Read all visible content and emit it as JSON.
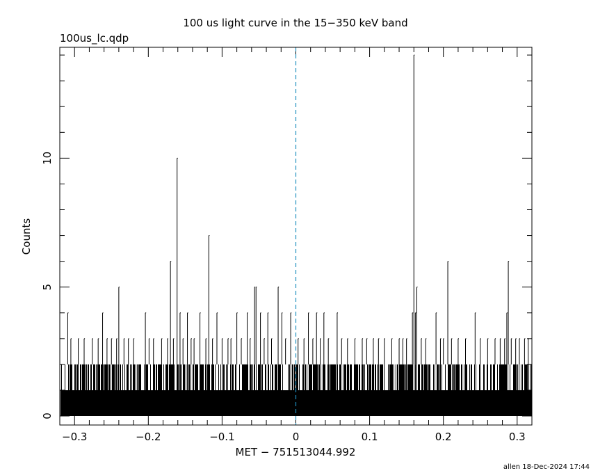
{
  "chart_data": {
    "type": "bar",
    "title": "100 us light curve in the 15−350 keV band",
    "file_label": "100us_lc.qdp",
    "xlabel": "MET − 751513044.992",
    "ylabel": "Counts",
    "footer": "allen 18-Dec-2024 17:44",
    "xlim": [
      -0.32,
      0.32
    ],
    "ylim": [
      -0.35,
      14.3
    ],
    "x_ticks": [
      -0.3,
      -0.2,
      -0.1,
      0,
      0.1,
      0.2,
      0.3
    ],
    "x_tick_labels": [
      "−0.3",
      "−0.2",
      "−0.1",
      "0",
      "0.1",
      "0.2",
      "0.3"
    ],
    "y_ticks": [
      0,
      5,
      10
    ],
    "y_tick_labels": [
      "0",
      "5",
      "10"
    ],
    "bin_width": 0.0001,
    "grid": false,
    "legend": "none",
    "trigger_line": {
      "x": 0,
      "color": "#1f8fbf"
    },
    "baseline_counts": 1,
    "peaks": [
      {
        "x": -0.3092,
        "y": 4
      },
      {
        "x": -0.305,
        "y": 3
      },
      {
        "x": -0.295,
        "y": 3
      },
      {
        "x": -0.287,
        "y": 3
      },
      {
        "x": -0.276,
        "y": 3
      },
      {
        "x": -0.268,
        "y": 3
      },
      {
        "x": -0.262,
        "y": 4
      },
      {
        "x": -0.256,
        "y": 3
      },
      {
        "x": -0.25,
        "y": 3
      },
      {
        "x": -0.243,
        "y": 3
      },
      {
        "x": -0.24,
        "y": 5
      },
      {
        "x": -0.233,
        "y": 3
      },
      {
        "x": -0.227,
        "y": 3
      },
      {
        "x": -0.22,
        "y": 3
      },
      {
        "x": -0.204,
        "y": 4
      },
      {
        "x": -0.199,
        "y": 3
      },
      {
        "x": -0.193,
        "y": 3
      },
      {
        "x": -0.182,
        "y": 3
      },
      {
        "x": -0.174,
        "y": 3
      },
      {
        "x": -0.17,
        "y": 6
      },
      {
        "x": -0.166,
        "y": 3
      },
      {
        "x": -0.161,
        "y": 10
      },
      {
        "x": -0.157,
        "y": 4
      },
      {
        "x": -0.153,
        "y": 3
      },
      {
        "x": -0.147,
        "y": 4
      },
      {
        "x": -0.142,
        "y": 3
      },
      {
        "x": -0.138,
        "y": 3
      },
      {
        "x": -0.13,
        "y": 4
      },
      {
        "x": -0.122,
        "y": 3
      },
      {
        "x": -0.118,
        "y": 7
      },
      {
        "x": -0.113,
        "y": 3
      },
      {
        "x": -0.107,
        "y": 4
      },
      {
        "x": -0.1,
        "y": 3
      },
      {
        "x": -0.092,
        "y": 3
      },
      {
        "x": -0.088,
        "y": 3
      },
      {
        "x": -0.08,
        "y": 4
      },
      {
        "x": -0.074,
        "y": 3
      },
      {
        "x": -0.066,
        "y": 4
      },
      {
        "x": -0.062,
        "y": 3
      },
      {
        "x": -0.056,
        "y": 5
      },
      {
        "x": -0.054,
        "y": 5
      },
      {
        "x": -0.048,
        "y": 4
      },
      {
        "x": -0.043,
        "y": 3
      },
      {
        "x": -0.038,
        "y": 4
      },
      {
        "x": -0.033,
        "y": 3
      },
      {
        "x": -0.024,
        "y": 5
      },
      {
        "x": -0.019,
        "y": 4
      },
      {
        "x": -0.014,
        "y": 3
      },
      {
        "x": -0.007,
        "y": 4
      },
      {
        "x": 0.003,
        "y": 3
      },
      {
        "x": 0.011,
        "y": 3
      },
      {
        "x": 0.017,
        "y": 4
      },
      {
        "x": 0.023,
        "y": 3
      },
      {
        "x": 0.028,
        "y": 4
      },
      {
        "x": 0.033,
        "y": 3
      },
      {
        "x": 0.038,
        "y": 4
      },
      {
        "x": 0.044,
        "y": 3
      },
      {
        "x": 0.056,
        "y": 4
      },
      {
        "x": 0.062,
        "y": 3
      },
      {
        "x": 0.07,
        "y": 3
      },
      {
        "x": 0.08,
        "y": 3
      },
      {
        "x": 0.09,
        "y": 3
      },
      {
        "x": 0.096,
        "y": 3
      },
      {
        "x": 0.105,
        "y": 3
      },
      {
        "x": 0.112,
        "y": 3
      },
      {
        "x": 0.12,
        "y": 3
      },
      {
        "x": 0.13,
        "y": 3
      },
      {
        "x": 0.14,
        "y": 3
      },
      {
        "x": 0.145,
        "y": 3
      },
      {
        "x": 0.15,
        "y": 3
      },
      {
        "x": 0.158,
        "y": 4
      },
      {
        "x": 0.16,
        "y": 14
      },
      {
        "x": 0.162,
        "y": 4
      },
      {
        "x": 0.164,
        "y": 5
      },
      {
        "x": 0.17,
        "y": 3
      },
      {
        "x": 0.176,
        "y": 3
      },
      {
        "x": 0.19,
        "y": 4
      },
      {
        "x": 0.196,
        "y": 3
      },
      {
        "x": 0.2,
        "y": 3
      },
      {
        "x": 0.206,
        "y": 6
      },
      {
        "x": 0.211,
        "y": 3
      },
      {
        "x": 0.22,
        "y": 3
      },
      {
        "x": 0.23,
        "y": 3
      },
      {
        "x": 0.243,
        "y": 4
      },
      {
        "x": 0.25,
        "y": 3
      },
      {
        "x": 0.26,
        "y": 3
      },
      {
        "x": 0.27,
        "y": 3
      },
      {
        "x": 0.277,
        "y": 3
      },
      {
        "x": 0.283,
        "y": 3
      },
      {
        "x": 0.286,
        "y": 4
      },
      {
        "x": 0.288,
        "y": 6
      },
      {
        "x": 0.292,
        "y": 3
      },
      {
        "x": 0.298,
        "y": 3
      },
      {
        "x": 0.303,
        "y": 3
      },
      {
        "x": 0.31,
        "y": 3
      },
      {
        "x": 0.315,
        "y": 3
      }
    ]
  }
}
